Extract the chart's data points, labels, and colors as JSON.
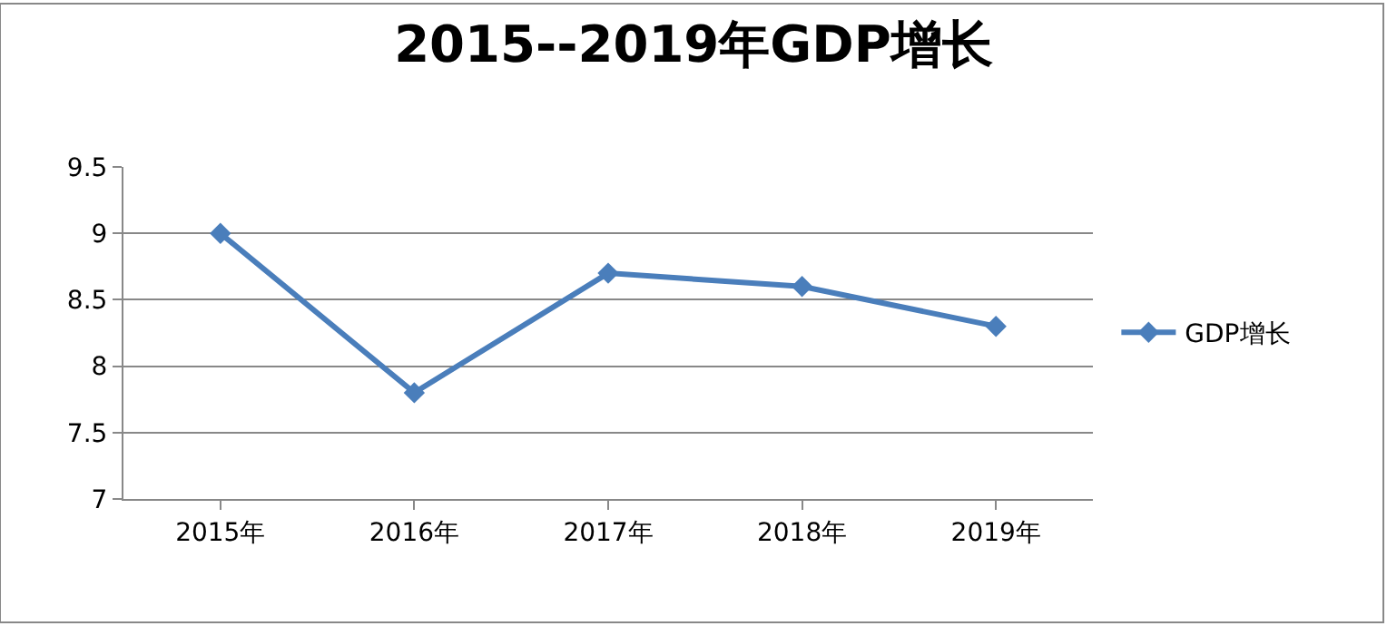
{
  "chart_data": {
    "type": "line",
    "title": "2015--2019年GDP增长",
    "categories": [
      "2015年",
      "2016年",
      "2017年",
      "2018年",
      "2019年"
    ],
    "series": [
      {
        "name": "GDP增长",
        "color": "#4a7ebb",
        "values": [
          9,
          7.8,
          8.7,
          8.6,
          8.3
        ]
      }
    ],
    "ylim": [
      7,
      9.5
    ],
    "yticks": [
      7,
      7.5,
      8,
      8.5,
      9,
      9.5
    ],
    "grid": "y",
    "legend": "right",
    "marker": "diamond",
    "line_style": "solid"
  }
}
